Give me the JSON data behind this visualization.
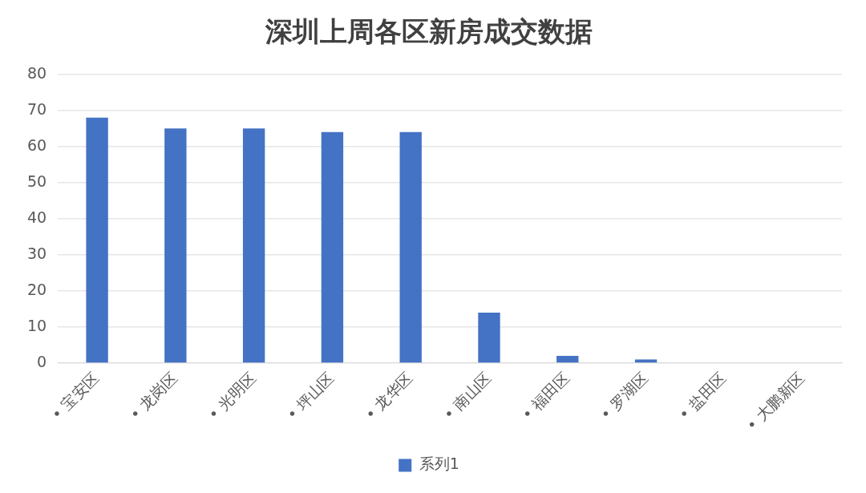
{
  "chart_data": {
    "type": "bar",
    "title": "深圳上周各区新房成交数据",
    "categories": [
      "• 宝安区",
      "• 龙岗区",
      "• 光明区",
      "• 坪山区",
      "• 龙华区",
      "• 南山区",
      "• 福田区",
      "• 罗湖区",
      "• 盐田区",
      "• 大鹏新区"
    ],
    "series": [
      {
        "name": "系列1",
        "color": "#4472c4",
        "values": [
          68,
          65,
          65,
          64,
          64,
          14,
          2,
          1,
          0,
          0
        ]
      }
    ],
    "ylim": [
      0,
      80
    ],
    "yticks": [
      0,
      10,
      20,
      30,
      40,
      50,
      60,
      70,
      80
    ],
    "grid": "y",
    "legend": "bottom"
  }
}
